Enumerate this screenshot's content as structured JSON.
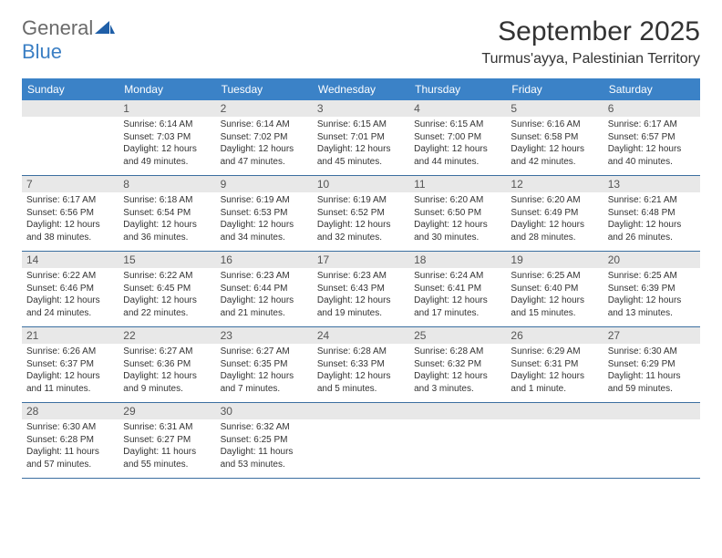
{
  "logo": {
    "part1": "General",
    "part2": "Blue"
  },
  "title": "September 2025",
  "location": "Turmus'ayya, Palestinian Territory",
  "colors": {
    "header_bg": "#3b82c7",
    "header_text": "#ffffff",
    "shade_bg": "#e8e8e8",
    "sep_line": "#3b6fa0",
    "logo_gray": "#6a6a6a",
    "logo_blue": "#3b7fc4",
    "text": "#333333"
  },
  "fonts": {
    "title_pt": 30,
    "location_pt": 16,
    "dayhead_pt": 12,
    "daynum_pt": 12,
    "body_pt": 10
  },
  "day_names": [
    "Sunday",
    "Monday",
    "Tuesday",
    "Wednesday",
    "Thursday",
    "Friday",
    "Saturday"
  ],
  "weeks": [
    {
      "nums": [
        "",
        "1",
        "2",
        "3",
        "4",
        "5",
        "6"
      ],
      "lines": [
        [
          "",
          "",
          ""
        ],
        [
          "Sunrise: 6:14 AM",
          "Sunset: 7:03 PM",
          "Daylight: 12 hours and 49 minutes."
        ],
        [
          "Sunrise: 6:14 AM",
          "Sunset: 7:02 PM",
          "Daylight: 12 hours and 47 minutes."
        ],
        [
          "Sunrise: 6:15 AM",
          "Sunset: 7:01 PM",
          "Daylight: 12 hours and 45 minutes."
        ],
        [
          "Sunrise: 6:15 AM",
          "Sunset: 7:00 PM",
          "Daylight: 12 hours and 44 minutes."
        ],
        [
          "Sunrise: 6:16 AM",
          "Sunset: 6:58 PM",
          "Daylight: 12 hours and 42 minutes."
        ],
        [
          "Sunrise: 6:17 AM",
          "Sunset: 6:57 PM",
          "Daylight: 12 hours and 40 minutes."
        ]
      ]
    },
    {
      "nums": [
        "7",
        "8",
        "9",
        "10",
        "11",
        "12",
        "13"
      ],
      "lines": [
        [
          "Sunrise: 6:17 AM",
          "Sunset: 6:56 PM",
          "Daylight: 12 hours and 38 minutes."
        ],
        [
          "Sunrise: 6:18 AM",
          "Sunset: 6:54 PM",
          "Daylight: 12 hours and 36 minutes."
        ],
        [
          "Sunrise: 6:19 AM",
          "Sunset: 6:53 PM",
          "Daylight: 12 hours and 34 minutes."
        ],
        [
          "Sunrise: 6:19 AM",
          "Sunset: 6:52 PM",
          "Daylight: 12 hours and 32 minutes."
        ],
        [
          "Sunrise: 6:20 AM",
          "Sunset: 6:50 PM",
          "Daylight: 12 hours and 30 minutes."
        ],
        [
          "Sunrise: 6:20 AM",
          "Sunset: 6:49 PM",
          "Daylight: 12 hours and 28 minutes."
        ],
        [
          "Sunrise: 6:21 AM",
          "Sunset: 6:48 PM",
          "Daylight: 12 hours and 26 minutes."
        ]
      ]
    },
    {
      "nums": [
        "14",
        "15",
        "16",
        "17",
        "18",
        "19",
        "20"
      ],
      "lines": [
        [
          "Sunrise: 6:22 AM",
          "Sunset: 6:46 PM",
          "Daylight: 12 hours and 24 minutes."
        ],
        [
          "Sunrise: 6:22 AM",
          "Sunset: 6:45 PM",
          "Daylight: 12 hours and 22 minutes."
        ],
        [
          "Sunrise: 6:23 AM",
          "Sunset: 6:44 PM",
          "Daylight: 12 hours and 21 minutes."
        ],
        [
          "Sunrise: 6:23 AM",
          "Sunset: 6:43 PM",
          "Daylight: 12 hours and 19 minutes."
        ],
        [
          "Sunrise: 6:24 AM",
          "Sunset: 6:41 PM",
          "Daylight: 12 hours and 17 minutes."
        ],
        [
          "Sunrise: 6:25 AM",
          "Sunset: 6:40 PM",
          "Daylight: 12 hours and 15 minutes."
        ],
        [
          "Sunrise: 6:25 AM",
          "Sunset: 6:39 PM",
          "Daylight: 12 hours and 13 minutes."
        ]
      ]
    },
    {
      "nums": [
        "21",
        "22",
        "23",
        "24",
        "25",
        "26",
        "27"
      ],
      "lines": [
        [
          "Sunrise: 6:26 AM",
          "Sunset: 6:37 PM",
          "Daylight: 12 hours and 11 minutes."
        ],
        [
          "Sunrise: 6:27 AM",
          "Sunset: 6:36 PM",
          "Daylight: 12 hours and 9 minutes."
        ],
        [
          "Sunrise: 6:27 AM",
          "Sunset: 6:35 PM",
          "Daylight: 12 hours and 7 minutes."
        ],
        [
          "Sunrise: 6:28 AM",
          "Sunset: 6:33 PM",
          "Daylight: 12 hours and 5 minutes."
        ],
        [
          "Sunrise: 6:28 AM",
          "Sunset: 6:32 PM",
          "Daylight: 12 hours and 3 minutes."
        ],
        [
          "Sunrise: 6:29 AM",
          "Sunset: 6:31 PM",
          "Daylight: 12 hours and 1 minute."
        ],
        [
          "Sunrise: 6:30 AM",
          "Sunset: 6:29 PM",
          "Daylight: 11 hours and 59 minutes."
        ]
      ]
    },
    {
      "nums": [
        "28",
        "29",
        "30",
        "",
        "",
        "",
        ""
      ],
      "lines": [
        [
          "Sunrise: 6:30 AM",
          "Sunset: 6:28 PM",
          "Daylight: 11 hours and 57 minutes."
        ],
        [
          "Sunrise: 6:31 AM",
          "Sunset: 6:27 PM",
          "Daylight: 11 hours and 55 minutes."
        ],
        [
          "Sunrise: 6:32 AM",
          "Sunset: 6:25 PM",
          "Daylight: 11 hours and 53 minutes."
        ],
        [
          "",
          "",
          ""
        ],
        [
          "",
          "",
          ""
        ],
        [
          "",
          "",
          ""
        ],
        [
          "",
          "",
          ""
        ]
      ]
    }
  ]
}
